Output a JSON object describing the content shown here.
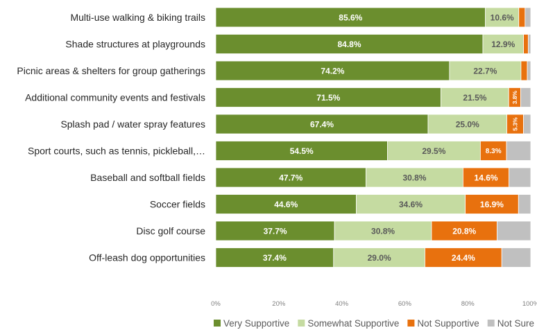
{
  "chart_data": {
    "type": "bar",
    "orientation": "horizontal-stacked-100",
    "categories": [
      "Multi-use walking & biking trails",
      "Shade structures at playgrounds",
      "Picnic areas & shelters for group gatherings",
      "Additional community events and festivals",
      "Splash pad / water spray features",
      "Sport courts, such as tennis, pickleball,…",
      "Baseball and softball fields",
      "Soccer fields",
      "Disc golf course",
      "Off-leash dog opportunities"
    ],
    "series": [
      {
        "name": "Very Supportive",
        "color": "#6b8e2e",
        "values": [
          85.6,
          84.8,
          74.2,
          71.5,
          67.4,
          54.5,
          47.7,
          44.6,
          37.7,
          37.4
        ],
        "labels": [
          "85.6%",
          "84.8%",
          "74.2%",
          "71.5%",
          "67.4%",
          "54.5%",
          "47.7%",
          "44.6%",
          "37.7%",
          "37.4%"
        ]
      },
      {
        "name": "Somewhat Supportive",
        "color": "#c5dba1",
        "values": [
          10.6,
          12.9,
          22.7,
          21.5,
          25.0,
          29.5,
          30.8,
          34.6,
          30.8,
          29.0
        ],
        "labels": [
          "10.6%",
          "12.9%",
          "22.7%",
          "21.5%",
          "25.0%",
          "29.5%",
          "30.8%",
          "34.6%",
          "30.8%",
          "29.0%"
        ]
      },
      {
        "name": "Not Supportive",
        "color": "#e8710e",
        "values": [
          2.0,
          1.5,
          2.0,
          3.8,
          5.3,
          8.3,
          14.6,
          16.9,
          20.8,
          24.4
        ],
        "labels": [
          "",
          "",
          "",
          "3.8%",
          "5.3%",
          "8.3%",
          "14.6%",
          "16.9%",
          "20.8%",
          "24.4%"
        ]
      },
      {
        "name": "Not Sure",
        "color": "#c0c0c0",
        "values": [
          1.8,
          0.8,
          1.1,
          3.2,
          2.3,
          7.7,
          6.9,
          3.9,
          10.7,
          9.2
        ],
        "labels": [
          "",
          "",
          "",
          "",
          "",
          "",
          "",
          "",
          "",
          ""
        ]
      }
    ],
    "xlim": [
      0,
      100
    ],
    "x_ticks": [
      "0%",
      "20%",
      "40%",
      "60%",
      "80%",
      "100%"
    ],
    "legend_position": "bottom-right",
    "grid": false
  }
}
